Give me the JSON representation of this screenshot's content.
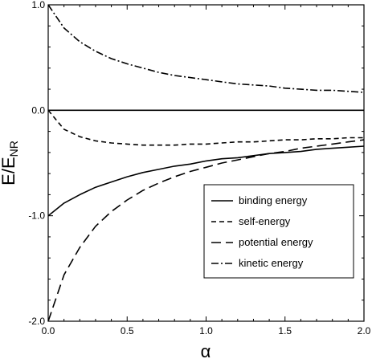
{
  "chart_data": {
    "type": "line",
    "title": "",
    "xlabel": "α",
    "ylabel": {
      "main": "E/E",
      "sub": "NR"
    },
    "xlim": [
      0.0,
      2.0
    ],
    "ylim": [
      -2.0,
      1.0
    ],
    "x_ticks": [
      "0.0",
      "0.5",
      "1.0",
      "1.5",
      "2.0"
    ],
    "y_ticks": [
      "-2.0",
      "-1.0",
      "0.0",
      "1.0"
    ],
    "x_tick_values": [
      0.0,
      0.5,
      1.0,
      1.5,
      2.0
    ],
    "y_tick_values": [
      -2.0,
      -1.0,
      0.0,
      1.0
    ],
    "grid": false,
    "legend_position": "lower-right",
    "reference_line_y": 0.0,
    "x": [
      0.0,
      0.1,
      0.2,
      0.3,
      0.4,
      0.5,
      0.6,
      0.7,
      0.8,
      0.9,
      1.0,
      1.1,
      1.2,
      1.3,
      1.4,
      1.5,
      1.6,
      1.7,
      1.8,
      1.9,
      2.0
    ],
    "series": [
      {
        "name": "binding energy",
        "style": "solid",
        "values": [
          -1.0,
          -0.88,
          -0.8,
          -0.73,
          -0.68,
          -0.63,
          -0.59,
          -0.56,
          -0.53,
          -0.51,
          -0.48,
          -0.46,
          -0.45,
          -0.43,
          -0.41,
          -0.4,
          -0.39,
          -0.37,
          -0.36,
          -0.35,
          -0.34
        ]
      },
      {
        "name": "self-energy",
        "style": "short-dash",
        "values": [
          0.0,
          -0.18,
          -0.25,
          -0.29,
          -0.31,
          -0.32,
          -0.33,
          -0.33,
          -0.33,
          -0.32,
          -0.32,
          -0.31,
          -0.3,
          -0.3,
          -0.29,
          -0.28,
          -0.28,
          -0.27,
          -0.27,
          -0.26,
          -0.26
        ]
      },
      {
        "name": "potential energy",
        "style": "long-dash",
        "values": [
          -2.0,
          -1.56,
          -1.3,
          -1.1,
          -0.96,
          -0.85,
          -0.76,
          -0.69,
          -0.63,
          -0.58,
          -0.54,
          -0.5,
          -0.47,
          -0.44,
          -0.41,
          -0.39,
          -0.36,
          -0.34,
          -0.32,
          -0.3,
          -0.28
        ]
      },
      {
        "name": "kinetic energy",
        "style": "dash-dot",
        "values": [
          1.0,
          0.78,
          0.65,
          0.56,
          0.49,
          0.44,
          0.4,
          0.36,
          0.33,
          0.31,
          0.29,
          0.27,
          0.25,
          0.24,
          0.23,
          0.21,
          0.2,
          0.19,
          0.19,
          0.18,
          0.17
        ]
      }
    ]
  }
}
